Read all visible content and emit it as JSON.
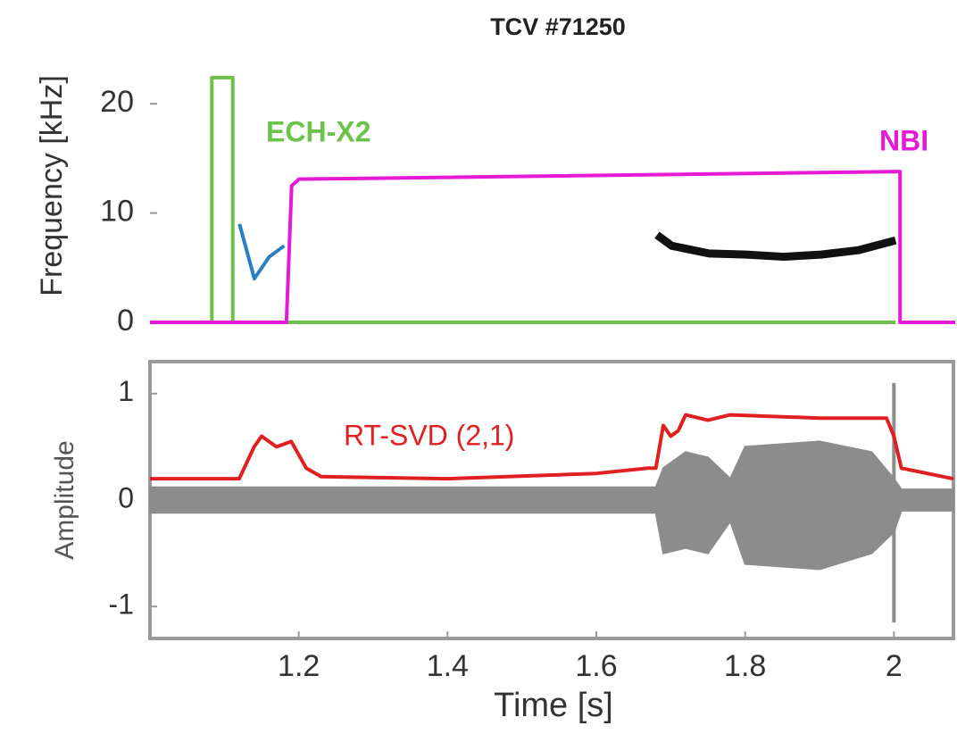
{
  "chart_data": [
    {
      "type": "line",
      "title": "TCV #71250",
      "ylabel": "Frequency [kHz]",
      "xlim": [
        1.0,
        2.08
      ],
      "ylim": [
        0,
        25
      ],
      "yticks": [
        0,
        10,
        20
      ],
      "series": [
        {
          "name": "ECH-X2",
          "color": "#6cc24a",
          "x": [
            1.0,
            1.083,
            1.083,
            1.111,
            1.111,
            2.0
          ],
          "values": [
            0,
            0,
            22.4,
            22.4,
            0,
            0
          ]
        },
        {
          "name": "NBI",
          "color": "#e619d6",
          "x": [
            1.0,
            1.183,
            1.19,
            1.2,
            2.006,
            2.006,
            2.08
          ],
          "values": [
            0,
            0,
            12.5,
            13.1,
            13.8,
            0,
            0
          ]
        },
        {
          "color": "#111111",
          "x": [
            1.68,
            1.7,
            1.75,
            1.8,
            1.85,
            1.9,
            1.95,
            2.0
          ],
          "values": [
            8,
            7,
            6.3,
            6.2,
            6,
            6.2,
            6.6,
            7.5
          ]
        },
        {
          "color": "#2a7fc0",
          "x": [
            1.12,
            1.14,
            1.16,
            1.18
          ],
          "values": [
            9,
            4,
            6,
            7
          ]
        }
      ]
    },
    {
      "type": "line",
      "xlabel": "Time [s]",
      "ylabel": "Amplitude",
      "xlim": [
        1.0,
        2.08
      ],
      "ylim": [
        -1.3,
        1.3
      ],
      "yticks": [
        -1,
        0,
        1
      ],
      "xticks": [
        1.2,
        1.4,
        1.6,
        1.8,
        2
      ],
      "series": [
        {
          "color": "#8c8c8c",
          "x": [
            1.0,
            1.68,
            1.69,
            1.72,
            1.75,
            1.78,
            1.8,
            1.9,
            1.97,
            2.0,
            2.01,
            2.08
          ],
          "values": [
            0.12,
            0.12,
            0.3,
            0.45,
            0.4,
            0.2,
            0.5,
            0.55,
            0.45,
            0.2,
            0.1,
            0.1
          ],
          "values_min": [
            -0.12,
            -0.12,
            -0.5,
            -0.45,
            -0.5,
            -0.2,
            -0.6,
            -0.65,
            -0.5,
            -0.3,
            -0.1,
            -0.1
          ]
        },
        {
          "color": "#8c8c8c",
          "x": [
            2.0,
            2.0
          ],
          "values": [
            -1.15,
            1.1
          ]
        },
        {
          "name": "RT-SVD (2,1)",
          "color": "#e02020",
          "x": [
            1.0,
            1.12,
            1.14,
            1.15,
            1.17,
            1.19,
            1.21,
            1.23,
            1.4,
            1.6,
            1.67,
            1.68,
            1.69,
            1.7,
            1.71,
            1.72,
            1.75,
            1.78,
            1.9,
            1.99,
            2.0,
            2.01,
            2.08
          ],
          "values": [
            0.2,
            0.2,
            0.5,
            0.6,
            0.5,
            0.55,
            0.3,
            0.22,
            0.2,
            0.25,
            0.3,
            0.3,
            0.7,
            0.6,
            0.65,
            0.8,
            0.75,
            0.8,
            0.77,
            0.77,
            0.6,
            0.3,
            0.2
          ]
        }
      ]
    }
  ]
}
